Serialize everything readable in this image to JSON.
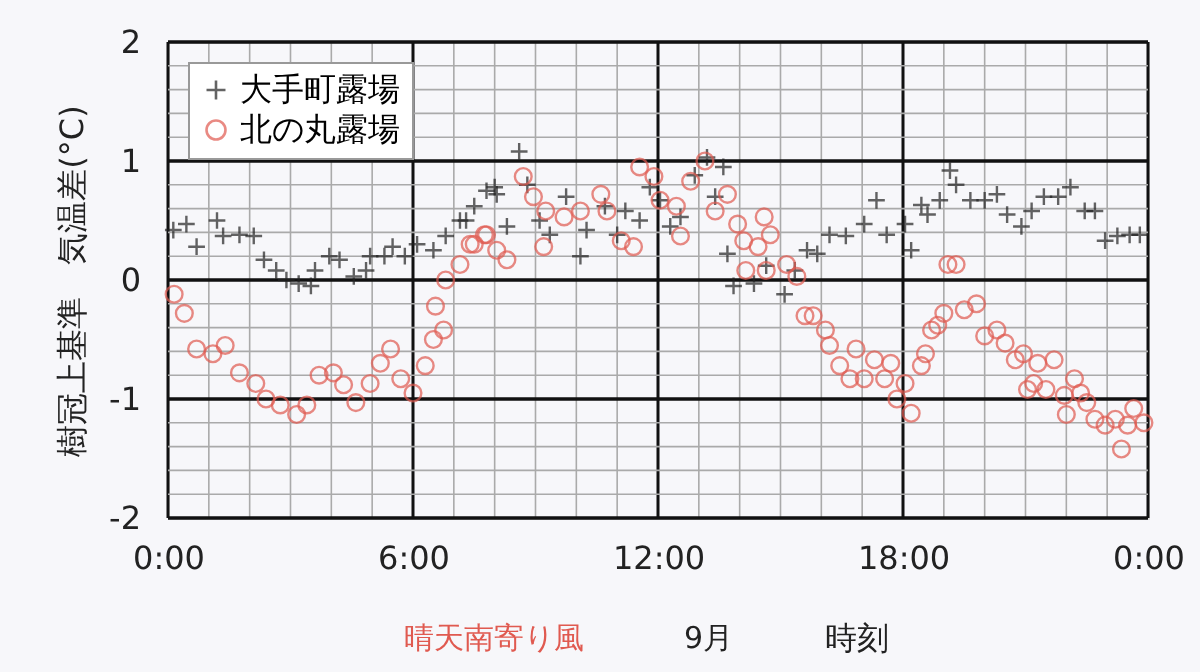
{
  "chart_data": {
    "type": "scatter",
    "xlabel": "時刻",
    "ylabel": "樹冠上基準　気温差(°C)",
    "annotations": [
      "晴天南寄り風",
      "9月"
    ],
    "xlim": [
      0,
      24
    ],
    "ylim": [
      -2,
      2
    ],
    "xticks": [
      {
        "value": 0,
        "label": "0:00"
      },
      {
        "value": 1,
        "label": null
      },
      {
        "value": 2,
        "label": null
      },
      {
        "value": 3,
        "label": null
      },
      {
        "value": 4,
        "label": null
      },
      {
        "value": 5,
        "label": null
      },
      {
        "value": 6,
        "label": "6:00"
      },
      {
        "value": 7,
        "label": null
      },
      {
        "value": 8,
        "label": null
      },
      {
        "value": 9,
        "label": null
      },
      {
        "value": 10,
        "label": null
      },
      {
        "value": 11,
        "label": null
      },
      {
        "value": 12,
        "label": "12:00"
      },
      {
        "value": 13,
        "label": null
      },
      {
        "value": 14,
        "label": null
      },
      {
        "value": 15,
        "label": null
      },
      {
        "value": 16,
        "label": null
      },
      {
        "value": 17,
        "label": null
      },
      {
        "value": 18,
        "label": "18:00"
      },
      {
        "value": 19,
        "label": null
      },
      {
        "value": 20,
        "label": null
      },
      {
        "value": 21,
        "label": null
      },
      {
        "value": 22,
        "label": null
      },
      {
        "value": 23,
        "label": null
      },
      {
        "value": 24,
        "label": "0:00"
      }
    ],
    "yticks": [
      -2,
      {
        "value": -1.8,
        "label": null
      },
      {
        "value": -1.6,
        "label": null
      },
      {
        "value": -1.4,
        "label": null
      },
      {
        "value": -1.2,
        "label": null
      },
      -1,
      {
        "value": -0.8,
        "label": null
      },
      {
        "value": -0.6,
        "label": null
      },
      {
        "value": -0.4,
        "label": null
      },
      {
        "value": -0.2,
        "label": null
      },
      0,
      {
        "value": 0.2,
        "label": null
      },
      {
        "value": 0.4,
        "label": null
      },
      {
        "value": 0.6,
        "label": null
      },
      {
        "value": 0.8,
        "label": null
      },
      1,
      {
        "value": 1.2,
        "label": null
      },
      {
        "value": 1.4,
        "label": null
      },
      {
        "value": 1.6,
        "label": null
      },
      {
        "value": 1.8,
        "label": null
      },
      2
    ],
    "grid": true,
    "legend": "top left",
    "series": [
      {
        "name": "大手町露場",
        "color": "#222222",
        "marker": "cross",
        "x": [
          0.13,
          0.45,
          0.7,
          1.2,
          1.35,
          1.75,
          2.1,
          2.35,
          2.65,
          2.9,
          3.2,
          3.5,
          3.6,
          3.95,
          4.2,
          4.55,
          4.85,
          4.95,
          5.3,
          5.5,
          5.8,
          6.1,
          6.5,
          6.8,
          7.15,
          7.3,
          7.5,
          7.8,
          8.0,
          8.05,
          8.3,
          8.6,
          8.8,
          9.1,
          9.35,
          9.75,
          10.1,
          10.25,
          10.7,
          11.0,
          11.2,
          11.55,
          11.8,
          12.05,
          12.3,
          12.55,
          12.9,
          13.2,
          13.4,
          13.6,
          13.7,
          13.85,
          14.35,
          14.65,
          15.1,
          15.35,
          15.65,
          15.9,
          16.2,
          16.6,
          17.05,
          17.35,
          17.6,
          18.05,
          18.2,
          18.45,
          18.6,
          18.9,
          19.15,
          19.3,
          19.65,
          20.0,
          20.3,
          20.55,
          20.9,
          21.15,
          21.45,
          21.8,
          22.1,
          22.45,
          22.7,
          22.95,
          23.25,
          23.55,
          23.8
        ],
        "values": [
          0.42,
          0.47,
          0.28,
          0.5,
          0.37,
          0.38,
          0.37,
          0.17,
          0.08,
          0.0,
          -0.03,
          -0.05,
          0.08,
          0.2,
          0.17,
          0.03,
          0.08,
          0.2,
          0.2,
          0.28,
          0.2,
          0.3,
          0.25,
          0.37,
          0.5,
          0.5,
          0.62,
          0.75,
          0.78,
          0.72,
          0.45,
          1.08,
          0.8,
          0.5,
          0.38,
          0.7,
          0.2,
          0.42,
          0.62,
          0.38,
          0.58,
          0.5,
          0.78,
          0.67,
          0.45,
          0.53,
          0.88,
          1.03,
          0.7,
          0.95,
          0.22,
          -0.05,
          -0.03,
          0.12,
          -0.12,
          0.08,
          0.25,
          0.22,
          0.38,
          0.37,
          0.47,
          0.67,
          0.38,
          0.47,
          0.25,
          0.63,
          0.55,
          0.67,
          0.92,
          0.8,
          0.67,
          0.67,
          0.72,
          0.55,
          0.45,
          0.58,
          0.7,
          0.7,
          0.78,
          0.58,
          0.58,
          0.33,
          0.37,
          0.38,
          0.38
        ]
      },
      {
        "name": "北の丸露場",
        "color": "#e05a50",
        "marker": "circle",
        "x": [
          0.15,
          0.4,
          0.7,
          1.1,
          1.4,
          1.75,
          2.15,
          2.4,
          2.75,
          3.15,
          3.4,
          3.7,
          4.05,
          4.3,
          4.6,
          4.95,
          5.2,
          5.45,
          5.7,
          6.0,
          6.3,
          6.5,
          6.55,
          6.75,
          6.8,
          7.15,
          7.4,
          7.5,
          7.75,
          7.8,
          8.05,
          8.3,
          8.7,
          8.95,
          9.2,
          9.25,
          9.7,
          10.1,
          10.6,
          10.75,
          11.1,
          11.4,
          11.55,
          11.9,
          12.05,
          12.45,
          12.55,
          12.8,
          13.15,
          13.4,
          13.7,
          13.95,
          14.1,
          14.15,
          14.45,
          14.6,
          14.65,
          14.75,
          15.15,
          15.4,
          15.6,
          15.8,
          16.1,
          16.2,
          16.45,
          16.7,
          16.85,
          17.05,
          17.3,
          17.55,
          17.7,
          17.85,
          18.05,
          18.2,
          18.45,
          18.55,
          18.7,
          18.85,
          19.0,
          19.1,
          19.3,
          19.5,
          19.8,
          20.0,
          20.3,
          20.5,
          20.75,
          20.95,
          21.05,
          21.2,
          21.3,
          21.5,
          21.7,
          21.95,
          22.0,
          22.2,
          22.35,
          22.5,
          22.7,
          22.95,
          23.2,
          23.35,
          23.5,
          23.65,
          23.9
        ],
        "values": [
          -0.12,
          -0.28,
          -0.58,
          -0.62,
          -0.55,
          -0.78,
          -0.87,
          -1.0,
          -1.05,
          -1.13,
          -1.05,
          -0.8,
          -0.78,
          -0.88,
          -1.03,
          -0.87,
          -0.7,
          -0.58,
          -0.83,
          -0.95,
          -0.72,
          -0.5,
          -0.22,
          -0.42,
          0.0,
          0.13,
          0.3,
          0.3,
          0.38,
          0.38,
          0.25,
          0.17,
          0.87,
          0.7,
          0.28,
          0.58,
          0.53,
          0.58,
          0.72,
          0.58,
          0.33,
          0.28,
          0.95,
          0.87,
          0.67,
          0.62,
          0.37,
          0.83,
          1.0,
          0.58,
          0.72,
          0.47,
          0.33,
          0.08,
          0.28,
          0.53,
          0.08,
          0.38,
          0.13,
          0.03,
          -0.3,
          -0.3,
          -0.42,
          -0.55,
          -0.72,
          -0.83,
          -0.58,
          -0.83,
          -0.67,
          -0.83,
          -0.7,
          -1.0,
          -0.87,
          -1.12,
          -0.72,
          -0.62,
          -0.42,
          -0.38,
          -0.28,
          0.13,
          0.13,
          -0.25,
          -0.2,
          -0.47,
          -0.42,
          -0.53,
          -0.67,
          -0.62,
          -0.92,
          -0.87,
          -0.7,
          -0.92,
          -0.67,
          -0.97,
          -1.13,
          -0.83,
          -0.95,
          -1.03,
          -1.17,
          -1.22,
          -1.17,
          -1.42,
          -1.22,
          -1.08,
          -1.2
        ]
      }
    ]
  }
}
